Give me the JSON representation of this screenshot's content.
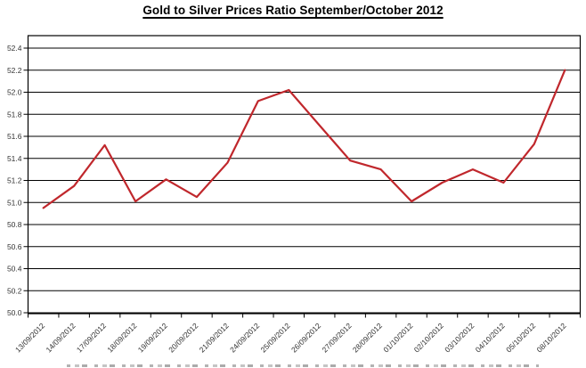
{
  "page": {
    "background_color": "#ffffff",
    "text_color": "#333333",
    "axis_color": "#000000"
  },
  "chart_data": {
    "type": "line",
    "title": "Gold to Silver Prices Ratio September/October 2012",
    "categories": [
      "13/09/2012",
      "14/09/2012",
      "17/09/2012",
      "18/09/2012",
      "19/09/2012",
      "20/09/2012",
      "21/09/2012",
      "24/09/2012",
      "25/09/2012",
      "26/09/2012",
      "27/09/2012",
      "28/09/2012",
      "01/10/2012",
      "02/10/2012",
      "03/10/2012",
      "04/10/2012",
      "05/10/2012",
      "08/10/2012"
    ],
    "series": [
      {
        "name": "Gold to Silver Prices Ratio",
        "color": "#c0272c",
        "values": [
          50.95,
          51.15,
          51.52,
          51.01,
          51.21,
          51.05,
          51.36,
          51.92,
          52.02,
          51.7,
          51.38,
          51.3,
          51.01,
          51.18,
          51.3,
          51.18,
          51.53,
          52.2
        ]
      }
    ],
    "xlabel": "",
    "ylabel": "",
    "ylim": [
      50.0,
      52.4
    ],
    "ytick_step": 0.2,
    "y_tick_labels": [
      "50.0",
      "50.2",
      "50.4",
      "50.6",
      "50.8",
      "51.0",
      "51.2",
      "51.4",
      "51.6",
      "51.8",
      "52.0",
      "52.2",
      "52.4"
    ],
    "grid": "horizontal",
    "legend_position": "none",
    "markers": "none"
  }
}
